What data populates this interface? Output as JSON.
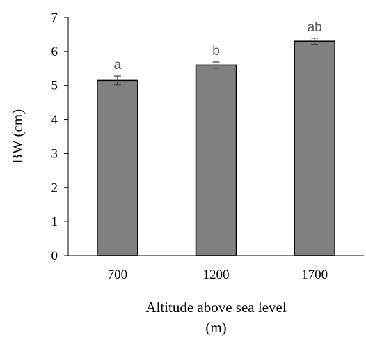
{
  "chart_data": {
    "type": "bar",
    "categories": [
      "700",
      "1200",
      "1700"
    ],
    "values": [
      5.15,
      5.6,
      6.3
    ],
    "errors": [
      0.13,
      0.09,
      0.09
    ],
    "significance_labels": [
      "a",
      "b",
      "ab"
    ],
    "xlabel_lines": [
      "Altitude above sea level",
      "(m)"
    ],
    "ylabel": "BW (cm)",
    "ylim": [
      0,
      7
    ],
    "yticks": [
      "0",
      "1",
      "2",
      "3",
      "4",
      "5",
      "6",
      "7"
    ],
    "grid": false,
    "bar_color": "#808080",
    "bar_edge_color": "#000000",
    "label_color": "#595959"
  }
}
